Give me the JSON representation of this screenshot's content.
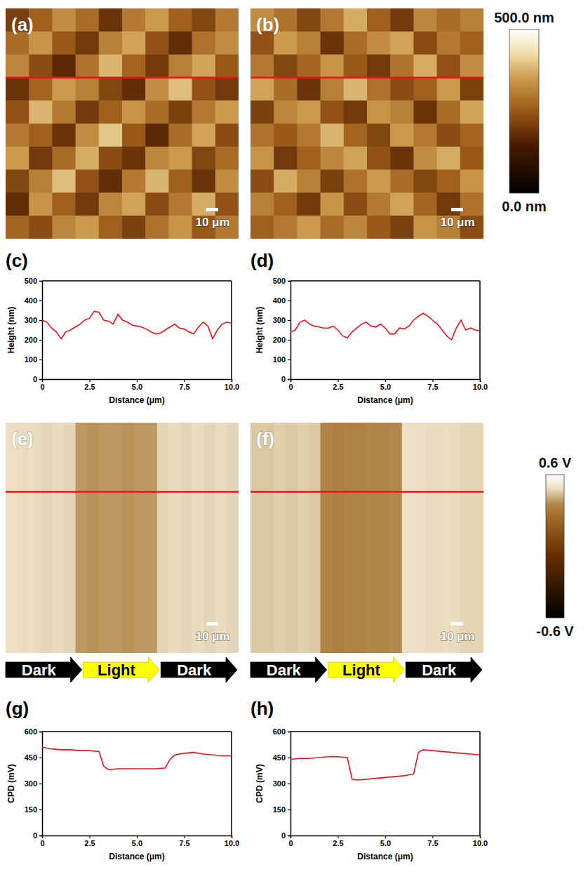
{
  "chart_data": [
    {
      "type": "heatmap",
      "label": "(a)",
      "color": "#e8141c",
      "annotation": "10 μm",
      "cells": [
        [
          210,
          260,
          330,
          280,
          190,
          300,
          350,
          260,
          220,
          300
        ],
        [
          280,
          340,
          250,
          200,
          310,
          360,
          240,
          180,
          290,
          330
        ],
        [
          320,
          230,
          170,
          290,
          380,
          270,
          200,
          310,
          360,
          250
        ],
        [
          190,
          270,
          350,
          310,
          220,
          180,
          330,
          390,
          240,
          200
        ],
        [
          240,
          380,
          300,
          200,
          260,
          340,
          280,
          210,
          300,
          350
        ],
        [
          300,
          260,
          190,
          330,
          400,
          250,
          170,
          280,
          360,
          230
        ],
        [
          350,
          200,
          280,
          370,
          230,
          190,
          320,
          350,
          220,
          280
        ],
        [
          220,
          310,
          390,
          240,
          180,
          300,
          380,
          260,
          190,
          330
        ],
        [
          180,
          340,
          260,
          200,
          320,
          360,
          230,
          300,
          370,
          240
        ],
        [
          270,
          230,
          320,
          350,
          260,
          210,
          290,
          340,
          250,
          300
        ]
      ]
    },
    {
      "type": "heatmap",
      "label": "(b)",
      "color": "#e8141c",
      "annotation": "10 μm",
      "cells": [
        [
          330,
          290,
          220,
          300,
          370,
          260,
          200,
          320,
          280,
          310
        ],
        [
          240,
          350,
          310,
          190,
          280,
          330,
          360,
          230,
          300,
          260
        ],
        [
          300,
          220,
          270,
          340,
          250,
          200,
          290,
          370,
          240,
          330
        ],
        [
          360,
          280,
          190,
          310,
          380,
          290,
          230,
          260,
          350,
          210
        ],
        [
          210,
          320,
          350,
          240,
          200,
          340,
          310,
          190,
          280,
          360
        ],
        [
          290,
          250,
          300,
          380,
          270,
          220,
          350,
          300,
          230,
          270
        ],
        [
          340,
          200,
          260,
          320,
          360,
          240,
          190,
          330,
          370,
          250
        ],
        [
          230,
          370,
          310,
          210,
          290,
          350,
          280,
          220,
          260,
          340
        ],
        [
          310,
          260,
          200,
          340,
          230,
          300,
          360,
          270,
          200,
          290
        ],
        [
          260,
          300,
          350,
          280,
          320,
          250,
          210,
          340,
          310,
          230
        ]
      ],
      "colorbar": {
        "range": [
          0,
          500
        ],
        "ticks": [
          {
            "value": 0,
            "label": "0.0 nm"
          },
          {
            "value": 500,
            "label": "500.0 nm"
          }
        ]
      }
    },
    {
      "type": "line",
      "label": "(c)",
      "color": "#e8141c",
      "xlabel": "Distance (μm)",
      "ylabel": "Height (nm)",
      "xlim": [
        0,
        10
      ],
      "ylim": [
        0,
        500
      ],
      "xticks": [
        0,
        2.5,
        {
          "value": 5,
          "label": "5.0"
        },
        7.5,
        {
          "value": 10,
          "label": "10.0"
        }
      ],
      "yticks": [
        0,
        100,
        200,
        300,
        400,
        500
      ],
      "x": [
        0,
        0.25,
        0.5,
        0.75,
        1,
        1.25,
        1.5,
        1.75,
        2,
        2.25,
        2.5,
        2.75,
        3,
        3.25,
        3.5,
        3.75,
        4,
        4.25,
        4.5,
        4.75,
        5,
        5.25,
        5.5,
        5.75,
        6,
        6.25,
        6.5,
        6.75,
        7,
        7.25,
        7.5,
        7.75,
        8,
        8.25,
        8.5,
        8.75,
        9,
        9.25,
        9.5,
        9.75,
        10
      ],
      "values": [
        300,
        290,
        260,
        240,
        205,
        240,
        250,
        265,
        280,
        300,
        310,
        345,
        340,
        300,
        295,
        280,
        330,
        300,
        290,
        275,
        270,
        265,
        255,
        240,
        230,
        235,
        250,
        265,
        280,
        260,
        255,
        240,
        230,
        265,
        290,
        270,
        205,
        250,
        280,
        290,
        285
      ]
    },
    {
      "type": "line",
      "label": "(d)",
      "color": "#e8141c",
      "xlabel": "Distance (μm)",
      "ylabel": "Height (nm)",
      "xlim": [
        0,
        10
      ],
      "ylim": [
        0,
        500
      ],
      "xticks": [
        0,
        2.5,
        {
          "value": 5,
          "label": "5.0"
        },
        7.5,
        {
          "value": 10,
          "label": "10.0"
        }
      ],
      "yticks": [
        0,
        100,
        200,
        300,
        400,
        500
      ],
      "x": [
        0,
        0.25,
        0.5,
        0.75,
        1,
        1.25,
        1.5,
        1.75,
        2,
        2.25,
        2.5,
        2.75,
        3,
        3.25,
        3.5,
        3.75,
        4,
        4.25,
        4.5,
        4.75,
        5,
        5.25,
        5.5,
        5.75,
        6,
        6.25,
        6.5,
        6.75,
        7,
        7.25,
        7.5,
        7.75,
        8,
        8.25,
        8.5,
        8.75,
        9,
        9.25,
        9.5,
        9.75,
        10
      ],
      "values": [
        240,
        250,
        290,
        300,
        280,
        270,
        265,
        260,
        260,
        270,
        250,
        220,
        210,
        240,
        260,
        280,
        290,
        270,
        265,
        280,
        260,
        230,
        230,
        260,
        255,
        270,
        300,
        320,
        335,
        320,
        300,
        280,
        250,
        220,
        200,
        260,
        300,
        250,
        260,
        250,
        245
      ]
    },
    {
      "type": "heatmap",
      "label": "(e)",
      "color": "#e8141c",
      "annotation": "10 μm",
      "arrows": [
        "Dark",
        "Light",
        "Dark"
      ],
      "cells": [
        [
          0.49,
          0.48,
          0.48,
          0.47,
          0.48,
          0.47,
          0.38,
          0.37,
          0.38,
          0.38,
          0.37,
          0.38,
          0.38,
          0.47,
          0.48,
          0.47,
          0.48,
          0.47,
          0.48,
          0.47
        ]
      ]
    },
    {
      "type": "heatmap",
      "label": "(f)",
      "color": "#e8141c",
      "annotation": "10 μm",
      "arrows": [
        "Dark",
        "Light",
        "Dark"
      ],
      "cells": [
        [
          0.45,
          0.45,
          0.46,
          0.45,
          0.46,
          0.45,
          0.33,
          0.32,
          0.33,
          0.33,
          0.34,
          0.34,
          0.35,
          0.49,
          0.49,
          0.48,
          0.48,
          0.48,
          0.47,
          0.47
        ]
      ],
      "colorbar": {
        "range": [
          -0.6,
          0.6
        ],
        "ticks": [
          {
            "value": -0.6,
            "label": "-0.6 V"
          },
          {
            "value": 0.6,
            "label": "0.6 V"
          }
        ]
      }
    },
    {
      "type": "line",
      "label": "(g)",
      "color": "#e8141c",
      "xlabel": "Distance (μm)",
      "ylabel": "CPD (mV)",
      "xlim": [
        0,
        10
      ],
      "ylim": [
        0,
        600
      ],
      "xticks": [
        0,
        2.5,
        {
          "value": 5,
          "label": "5.0"
        },
        7.5,
        {
          "value": 10,
          "label": "10.0"
        }
      ],
      "yticks": [
        0,
        150,
        300,
        450,
        600
      ],
      "x": [
        0,
        0.5,
        1,
        1.5,
        2,
        2.5,
        3,
        3.25,
        3.5,
        4,
        4.5,
        5,
        5.5,
        6,
        6.5,
        6.75,
        7,
        7.5,
        8,
        8.5,
        9,
        9.5,
        10
      ],
      "values": [
        510,
        500,
        495,
        495,
        490,
        490,
        485,
        400,
        380,
        385,
        385,
        385,
        385,
        385,
        390,
        440,
        465,
        475,
        480,
        470,
        465,
        460,
        460
      ]
    },
    {
      "type": "line",
      "label": "(h)",
      "color": "#e8141c",
      "xlabel": "Distance (μm)",
      "ylabel": "CPD (mV)",
      "xlim": [
        0,
        10
      ],
      "ylim": [
        0,
        600
      ],
      "xticks": [
        0,
        2.5,
        {
          "value": 5,
          "label": "5.0"
        },
        7.5,
        {
          "value": 10,
          "label": "10.0"
        }
      ],
      "yticks": [
        0,
        150,
        300,
        450,
        600
      ],
      "x": [
        0,
        0.5,
        1,
        1.5,
        2,
        2.5,
        3,
        3.25,
        3.5,
        4,
        4.5,
        5,
        5.5,
        6,
        6.5,
        6.75,
        7,
        7.5,
        8,
        8.5,
        9,
        9.5,
        10
      ],
      "values": [
        440,
        445,
        445,
        450,
        455,
        455,
        450,
        325,
        320,
        325,
        330,
        335,
        340,
        345,
        355,
        480,
        495,
        490,
        485,
        480,
        475,
        470,
        465
      ]
    }
  ]
}
